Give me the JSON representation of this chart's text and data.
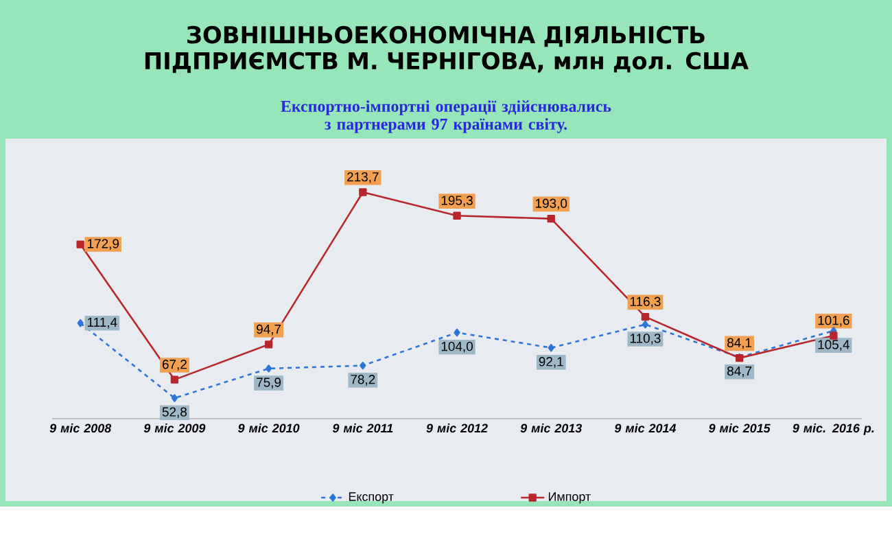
{
  "chart_data": {
    "type": "line",
    "title": "ЗОВНІШНЬОЕКОНОМІЧНА ДІЯЛЬНІСТЬ ПІДПРИЄМСТВ М. ЧЕРНІГОВА, млн дол. США",
    "subtitle": "Експортно-імпортні операції здійснювались з партнерами 97 країнами світу.",
    "categories": [
      "9 міс 2008",
      "9 міс 2009",
      "9 міс 2010",
      "9 міс 2011",
      "9 міс 2012",
      "9 міс 2013",
      "9 міс 2014",
      "9 міс 2015",
      "9 міс. 2016 р."
    ],
    "series": [
      {
        "name": "Експорт",
        "color": "#2e75d6",
        "marker": "diamond",
        "line_style": "dashed",
        "values": [
          111.4,
          52.8,
          75.9,
          78.2,
          104.0,
          92.1,
          110.3,
          84.7,
          105.4
        ],
        "value_labels": [
          "111,4",
          "52,8",
          "75,9",
          "78,2",
          "104,0",
          "92,1",
          "110,3",
          "84,7",
          "105,4"
        ]
      },
      {
        "name": "Импорт",
        "color": "#b8262c",
        "marker": "square",
        "line_style": "solid",
        "values": [
          172.9,
          67.2,
          94.7,
          213.7,
          195.3,
          193.0,
          116.3,
          84.1,
          101.6
        ],
        "value_labels": [
          "172,9",
          "67,2",
          "94,7",
          "213,7",
          "195,3",
          "193,0",
          "116,3",
          "84,1",
          "101,6"
        ]
      }
    ],
    "legend": "bottom"
  }
}
